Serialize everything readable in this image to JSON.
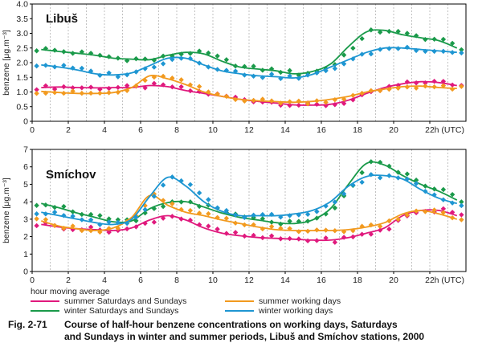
{
  "chart_data": [
    {
      "type": "scatter",
      "title": "Libuš",
      "ylabel": "benzene [μg.m⁻³]",
      "xlabel": "h (UTC)",
      "ylim": [
        0,
        4.0
      ],
      "xlim": [
        0,
        24
      ],
      "yticks": [
        "0",
        "0.5",
        "1.0",
        "1.5",
        "2.0",
        "2.5",
        "3.0",
        "3.5",
        "4.0"
      ],
      "xticks": [
        "0",
        "2",
        "4",
        "6",
        "8",
        "10",
        "12",
        "14",
        "16",
        "18",
        "20",
        "22"
      ],
      "grid": "vertical dashed",
      "x": [
        0,
        1,
        2,
        3,
        4,
        5,
        6,
        7,
        8,
        9,
        10,
        11,
        12,
        13,
        14,
        15,
        16,
        17,
        18,
        19,
        20,
        21,
        22,
        23
      ],
      "series": [
        {
          "name": "summer Saturdays and Sundays",
          "color": "#e0197d",
          "values": [
            1.15,
            1.17,
            1.15,
            1.14,
            1.15,
            1.15,
            1.22,
            1.18,
            1.05,
            0.95,
            0.85,
            0.75,
            0.68,
            0.62,
            0.56,
            0.55,
            0.58,
            0.72,
            0.95,
            1.15,
            1.28,
            1.35,
            1.32,
            1.22
          ]
        },
        {
          "name": "winter Saturdays and Sundays",
          "color": "#1a9a4a",
          "values": [
            2.45,
            2.38,
            2.32,
            2.25,
            2.15,
            2.12,
            2.1,
            2.25,
            2.35,
            2.3,
            2.05,
            1.85,
            1.78,
            1.72,
            1.62,
            1.7,
            1.95,
            2.55,
            3.05,
            3.1,
            2.95,
            2.85,
            2.75,
            2.5
          ]
        },
        {
          "name": "summer working days",
          "color": "#f29a1f",
          "values": [
            1.02,
            0.98,
            0.95,
            0.95,
            0.98,
            1.15,
            1.55,
            1.45,
            1.25,
            1.0,
            0.85,
            0.75,
            0.7,
            0.67,
            0.65,
            0.68,
            0.75,
            0.85,
            1.0,
            1.1,
            1.18,
            1.2,
            1.15,
            1.12
          ]
        },
        {
          "name": "winter working days",
          "color": "#1e96d2",
          "values": [
            1.92,
            1.85,
            1.75,
            1.62,
            1.58,
            1.65,
            1.9,
            2.15,
            2.15,
            1.92,
            1.72,
            1.62,
            1.55,
            1.52,
            1.48,
            1.6,
            1.85,
            2.1,
            2.35,
            2.5,
            2.5,
            2.45,
            2.4,
            2.35
          ]
        }
      ]
    },
    {
      "type": "scatter",
      "title": "Smíchov",
      "ylabel": "benzene [μg.m⁻³]",
      "xlabel": "h (UTC)",
      "ylim": [
        0,
        7
      ],
      "xlim": [
        0,
        24
      ],
      "yticks": [
        "0",
        "1",
        "2",
        "3",
        "4",
        "5",
        "6",
        "7"
      ],
      "xticks": [
        "0",
        "2",
        "4",
        "6",
        "8",
        "10",
        "12",
        "14",
        "16",
        "18",
        "20",
        "22"
      ],
      "grid": "vertical dashed",
      "x": [
        0,
        1,
        2,
        3,
        4,
        5,
        6,
        7,
        8,
        9,
        10,
        11,
        12,
        13,
        14,
        15,
        16,
        17,
        18,
        19,
        20,
        21,
        22,
        23
      ],
      "series": [
        {
          "name": "summer Saturdays and Sundays",
          "color": "#e0197d",
          "values": [
            2.7,
            2.55,
            2.45,
            2.4,
            2.35,
            2.5,
            2.95,
            3.2,
            2.95,
            2.5,
            2.2,
            2.05,
            1.95,
            1.9,
            1.85,
            1.8,
            1.8,
            1.95,
            2.2,
            2.5,
            3.2,
            3.5,
            3.5,
            3.2
          ]
        },
        {
          "name": "winter Saturdays and Sundays",
          "color": "#1a9a4a",
          "values": [
            3.9,
            3.65,
            3.35,
            3.1,
            2.85,
            2.9,
            3.6,
            3.95,
            4.0,
            3.7,
            3.35,
            3.1,
            2.95,
            2.8,
            2.75,
            2.95,
            3.6,
            5.0,
            6.2,
            6.1,
            5.5,
            5.0,
            4.6,
            4.1
          ]
        },
        {
          "name": "summer working days",
          "color": "#f29a1f",
          "values": [
            2.9,
            2.6,
            2.45,
            2.35,
            2.5,
            3.1,
            4.35,
            3.8,
            3.4,
            3.2,
            2.95,
            2.75,
            2.55,
            2.4,
            2.35,
            2.35,
            2.35,
            2.4,
            2.55,
            2.8,
            3.3,
            3.5,
            3.3,
            3.0
          ]
        },
        {
          "name": "winter working days",
          "color": "#1e96d2",
          "values": [
            3.4,
            3.2,
            3.0,
            2.8,
            2.7,
            3.0,
            4.3,
            5.4,
            4.9,
            4.0,
            3.45,
            3.2,
            3.2,
            3.2,
            3.3,
            3.5,
            4.0,
            4.9,
            5.45,
            5.5,
            5.3,
            4.7,
            4.2,
            3.9
          ]
        }
      ]
    }
  ],
  "legend": {
    "heading": "hour moving average",
    "items": [
      {
        "label": "summer Saturdays and Sundays",
        "color": "#e0197d"
      },
      {
        "label": "winter Saturdays and Sundays",
        "color": "#1a9a4a"
      },
      {
        "label": "summer working days",
        "color": "#f29a1f"
      },
      {
        "label": "winter working days",
        "color": "#1e96d2"
      }
    ]
  },
  "caption": {
    "number": "Fig. 2-71",
    "line1": "Course of half-hour benzene concentrations on working days, Saturdays",
    "line2": "and Sundays in winter and summer periods, Libuš and Smíchov stations, 2000"
  }
}
